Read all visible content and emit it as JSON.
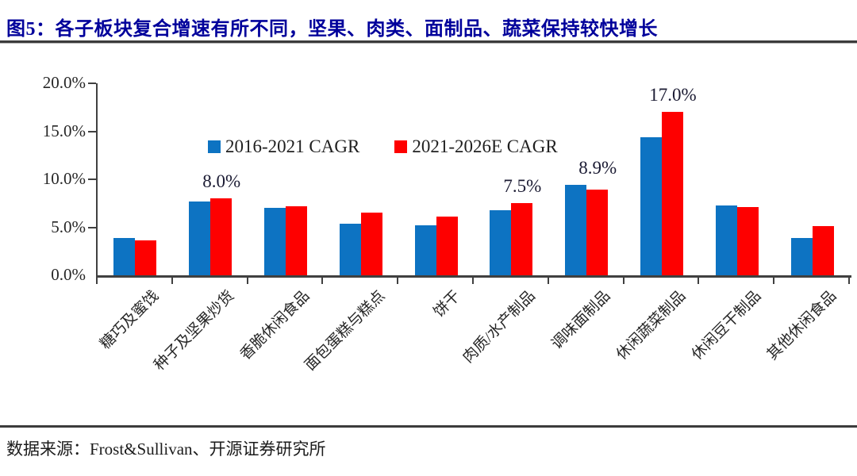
{
  "title": "图5：各子板块复合增速有所不同，坚果、肉类、面制品、蔬菜保持较快增长",
  "source": "数据来源：Frost&Sullivan、开源证券研究所",
  "colors": {
    "title": "#00009B",
    "series_blue": "#0D73C2",
    "series_red": "#FE0000",
    "axis": "#404040",
    "annotation": "#1B1B33"
  },
  "chart_data": {
    "type": "bar",
    "title": "",
    "xlabel": "",
    "ylabel": "",
    "ylim": [
      0,
      20
    ],
    "grid": false,
    "legend_position": "top-center",
    "y_tick_labels": [
      "20.0%",
      "15.0%",
      "10.0%",
      "5.0%",
      "0.0%"
    ],
    "categories": [
      "糖巧及蜜饯",
      "种子及坚果炒货",
      "香脆休闲食品",
      "面包蛋糕与糕点",
      "饼干",
      "肉质/水产制品",
      "调味面制品",
      "休闲蔬菜制品",
      "休闲豆干制品",
      "其他休闲食品"
    ],
    "series": [
      {
        "name": "2016-2021 CAGR",
        "color_key": "series_blue",
        "values": [
          3.9,
          7.7,
          7.0,
          5.4,
          5.2,
          6.8,
          9.4,
          14.4,
          7.3,
          3.9
        ]
      },
      {
        "name": "2021-2026E CAGR",
        "color_key": "series_red",
        "values": [
          3.6,
          8.0,
          7.2,
          6.5,
          6.1,
          7.5,
          8.9,
          17.0,
          7.1,
          5.1
        ]
      }
    ],
    "annotations": [
      {
        "text": "8.0%",
        "category_index": 1
      },
      {
        "text": "7.5%",
        "category_index": 5
      },
      {
        "text": "8.9%",
        "category_index": 6
      },
      {
        "text": "17.0%",
        "category_index": 7
      }
    ]
  }
}
